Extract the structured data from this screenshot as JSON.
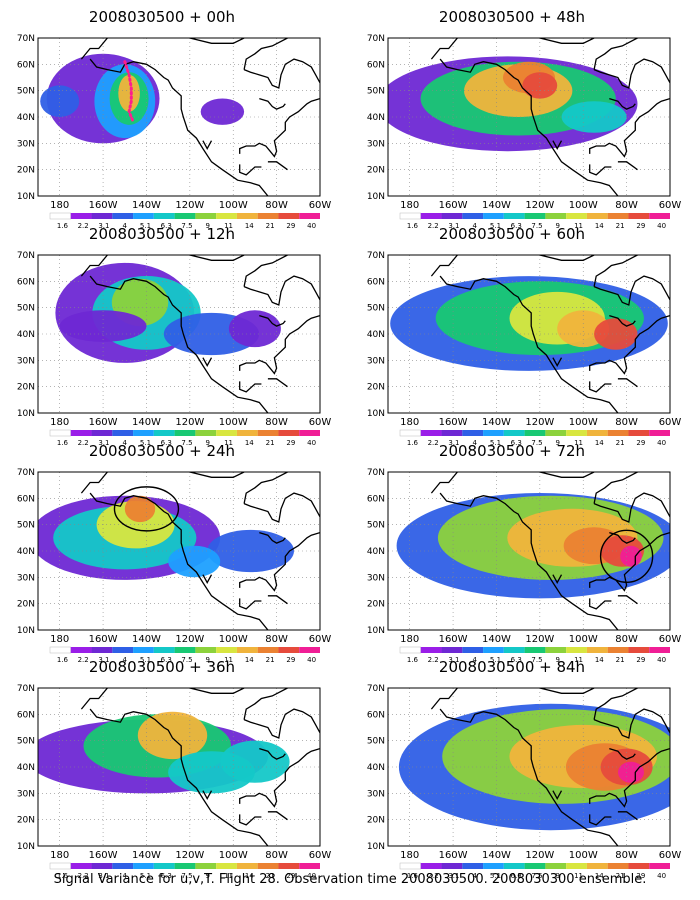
{
  "figure": {
    "caption": "Signal Variance for u,v,T. Flight 28. Observation time 2008030500. 2008030300 ensemble."
  },
  "axes": {
    "lat_labels": [
      "10N",
      "20N",
      "30N",
      "40N",
      "50N",
      "60N",
      "70N"
    ],
    "lon_labels": [
      "180",
      "160W",
      "140W",
      "120W",
      "100W",
      "80W",
      "60W"
    ],
    "lon_range": [
      -190,
      -60
    ],
    "lat_range": [
      10,
      70
    ]
  },
  "colorbar": {
    "levels": [
      "1.6",
      "2.2",
      "3.1",
      "4",
      "5.1",
      "6.3",
      "7.5",
      "9",
      "11",
      "14",
      "21",
      "29",
      "40"
    ],
    "colors": [
      "#ffffff",
      "#9a1ee8",
      "#6e28d4",
      "#2f5fe6",
      "#1ea0ff",
      "#14c8c8",
      "#18c873",
      "#8cd23c",
      "#d8e640",
      "#f0b43c",
      "#eb8232",
      "#e64b3c",
      "#f01e96"
    ]
  },
  "panels": [
    {
      "title": "2008030500 + 00h",
      "annotation": "dotted-line",
      "level": 0
    },
    {
      "title": "2008030500 + 48h",
      "annotation": "none",
      "level": 4
    },
    {
      "title": "2008030500 + 12h",
      "annotation": "none",
      "level": 1
    },
    {
      "title": "2008030500 + 60h",
      "annotation": "none",
      "level": 5
    },
    {
      "title": "2008030500 + 24h",
      "annotation": "circle-west",
      "level": 2
    },
    {
      "title": "2008030500 + 72h",
      "annotation": "circle-east",
      "level": 6
    },
    {
      "title": "2008030500 + 36h",
      "annotation": "none",
      "level": 3
    },
    {
      "title": "2008030500 + 84h",
      "annotation": "none",
      "level": 7
    }
  ]
}
